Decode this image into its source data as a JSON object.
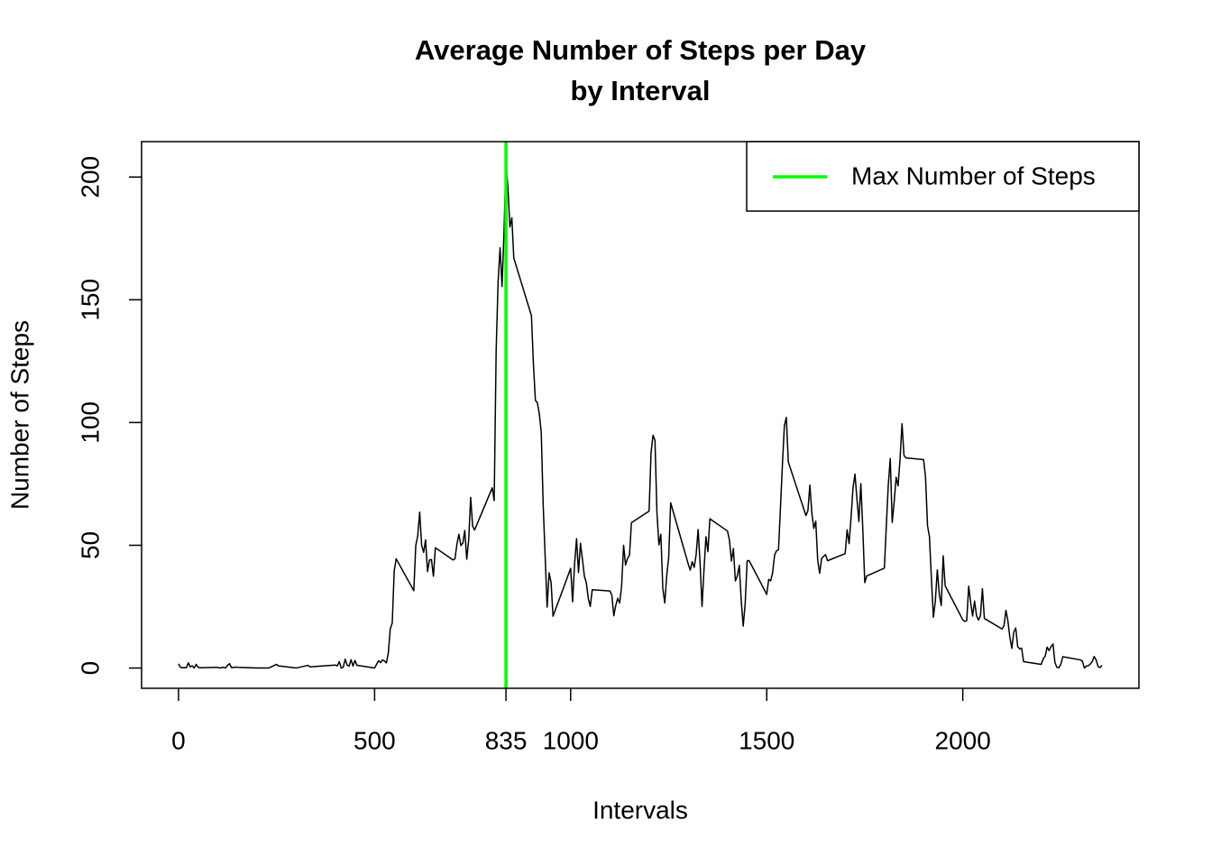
{
  "chart_data": {
    "type": "line",
    "title": [
      "Average Number of Steps per Day",
      "by Interval"
    ],
    "x_label": "Intervals",
    "y_label": "Number of Steps",
    "xlim": [
      -94.2,
      2449.2
    ],
    "ylim": [
      -8.25,
      214.42
    ],
    "xticks": [
      0,
      500,
      835,
      1000,
      1500,
      2000
    ],
    "yticks": [
      0,
      50,
      100,
      150,
      200
    ],
    "legend_position": "top-right",
    "x": [
      0,
      5,
      10,
      15,
      20,
      25,
      30,
      35,
      40,
      45,
      50,
      55,
      100,
      105,
      110,
      115,
      120,
      125,
      130,
      135,
      140,
      145,
      150,
      200,
      230,
      250,
      255,
      300,
      330,
      335,
      400,
      405,
      410,
      415,
      420,
      425,
      430,
      435,
      440,
      445,
      450,
      455,
      500,
      505,
      510,
      515,
      520,
      525,
      530,
      535,
      540,
      545,
      550,
      555,
      600,
      605,
      610,
      615,
      620,
      625,
      630,
      635,
      640,
      645,
      650,
      655,
      700,
      705,
      710,
      715,
      720,
      725,
      730,
      735,
      740,
      745,
      750,
      755,
      800,
      805,
      810,
      815,
      820,
      825,
      830,
      835,
      840,
      845,
      850,
      855,
      900,
      905,
      910,
      915,
      920,
      925,
      930,
      935,
      940,
      945,
      950,
      955,
      1000,
      1005,
      1010,
      1015,
      1020,
      1025,
      1030,
      1035,
      1040,
      1045,
      1050,
      1055,
      1100,
      1105,
      1110,
      1115,
      1120,
      1125,
      1130,
      1135,
      1140,
      1145,
      1150,
      1155,
      1200,
      1205,
      1210,
      1215,
      1220,
      1225,
      1230,
      1235,
      1240,
      1245,
      1250,
      1255,
      1300,
      1305,
      1310,
      1315,
      1320,
      1325,
      1330,
      1335,
      1340,
      1345,
      1350,
      1355,
      1400,
      1405,
      1410,
      1415,
      1420,
      1425,
      1430,
      1435,
      1440,
      1445,
      1450,
      1455,
      1500,
      1505,
      1510,
      1515,
      1520,
      1525,
      1530,
      1535,
      1540,
      1545,
      1550,
      1555,
      1600,
      1605,
      1610,
      1615,
      1620,
      1625,
      1630,
      1635,
      1640,
      1645,
      1650,
      1655,
      1700,
      1705,
      1710,
      1715,
      1720,
      1725,
      1730,
      1735,
      1740,
      1745,
      1750,
      1755,
      1800,
      1805,
      1810,
      1815,
      1820,
      1825,
      1830,
      1835,
      1840,
      1845,
      1850,
      1855,
      1900,
      1905,
      1910,
      1915,
      1920,
      1925,
      1930,
      1935,
      1940,
      1945,
      1950,
      1955,
      2000,
      2005,
      2010,
      2015,
      2020,
      2025,
      2030,
      2035,
      2040,
      2045,
      2050,
      2055,
      2100,
      2105,
      2110,
      2115,
      2120,
      2125,
      2130,
      2135,
      2140,
      2145,
      2150,
      2155,
      2200,
      2205,
      2210,
      2215,
      2220,
      2225,
      2230,
      2235,
      2240,
      2245,
      2250,
      2255,
      2300,
      2305,
      2310,
      2315,
      2320,
      2325,
      2330,
      2335,
      2340,
      2345,
      2350,
      2355
    ],
    "series": [
      {
        "color": "#000000",
        "values": [
          1.7,
          0.3,
          0.1,
          0.2,
          0.1,
          2.1,
          0.5,
          0.9,
          0,
          1.5,
          0.3,
          0.1,
          0.3,
          0,
          0.2,
          0.3,
          0,
          1.1,
          1.8,
          0.2,
          0.2,
          0.4,
          0.3,
          0,
          0,
          1.5,
          0.9,
          0,
          1.1,
          0.5,
          1.2,
          0.9,
          2.6,
          0,
          0.3,
          3.6,
          1.2,
          0.8,
          3.4,
          0.8,
          3.1,
          1.1,
          0,
          1.5,
          3,
          2.2,
          3.3,
          2.9,
          2.1,
          6.1,
          16,
          18.3,
          39.5,
          44.5,
          31.5,
          49.9,
          53.8,
          63.5,
          50,
          47.1,
          52.2,
          39.3,
          44,
          44.2,
          37.4,
          49,
          44,
          44.5,
          50.5,
          54.5,
          49.9,
          50.8,
          56,
          44.3,
          52.3,
          69.5,
          57.8,
          56.2,
          73.4,
          68.2,
          129.4,
          157.5,
          171.2,
          155.4,
          177.3,
          206.2,
          195.9,
          179.6,
          183.4,
          167,
          143.5,
          124,
          109.1,
          108.1,
          103.7,
          95.97,
          66.2,
          45.2,
          24.8,
          38.8,
          34.98,
          21.1,
          40.6,
          26.98,
          42.4,
          52.7,
          38.9,
          50.8,
          44.3,
          37.4,
          34.7,
          28.3,
          25.1,
          31.9,
          31.4,
          29.7,
          21.3,
          25.5,
          28.4,
          26.5,
          33.4,
          50,
          42,
          44.6,
          46,
          59.2,
          63.9,
          87.7,
          94.8,
          92.8,
          63.4,
          50.2,
          54.5,
          32.4,
          26.5,
          37.7,
          45.1,
          67.3,
          42.3,
          39.9,
          43.3,
          40.98,
          46.2,
          56.4,
          42.8,
          25.1,
          39.97,
          53.5,
          47.4,
          60.8,
          55.8,
          51.96,
          43.6,
          48.7,
          35.5,
          37.5,
          41.8,
          27.5,
          17.1,
          26.1,
          43.6,
          43.8,
          30,
          36.1,
          35.5,
          38.8,
          45.96,
          47.8,
          48.1,
          65.3,
          82.9,
          98.7,
          102.1,
          83.96,
          62.1,
          64.1,
          74.5,
          63.2,
          56.9,
          59.8,
          43.9,
          38.6,
          44.7,
          45.5,
          46.2,
          43.7,
          46.6,
          56.3,
          50.7,
          61.2,
          73.4,
          79,
          68.9,
          59.7,
          75.1,
          56.5,
          34.8,
          37.5,
          40.7,
          58,
          74.7,
          85.3,
          59.3,
          67.8,
          77.7,
          74.2,
          85.3,
          99.5,
          86.6,
          85.6,
          84.9,
          77.8,
          58,
          53.4,
          36.3,
          20.7,
          27.4,
          40,
          30.2,
          25.5,
          45.7,
          33.5,
          19.6,
          19,
          19.3,
          33.3,
          26.8,
          21.2,
          27.3,
          21.3,
          19.5,
          21.3,
          32.3,
          20.2,
          15.9,
          17.2,
          23.5,
          19.2,
          12.5,
          8,
          14.7,
          16.3,
          8.7,
          7.8,
          8.1,
          2.6,
          1.5,
          3.7,
          4.8,
          8.5,
          7.1,
          8.7,
          9.8,
          2.2,
          0.3,
          0.1,
          1.6,
          4.6,
          3.3,
          2.8,
          0,
          0.8,
          0.96,
          1.6,
          2.6,
          4.7,
          3.3,
          0.6,
          0.2,
          1.1
        ]
      }
    ],
    "vline": {
      "name": "Max Number of Steps",
      "x": 835,
      "color": "#00ff00"
    }
  }
}
